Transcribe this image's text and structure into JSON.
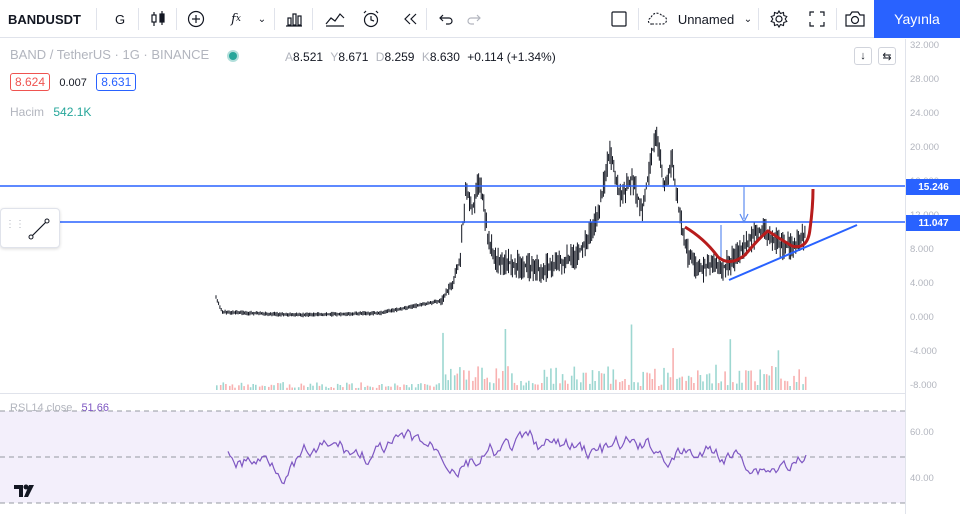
{
  "toolbar": {
    "symbol": "BANDUSDT",
    "interval": "G",
    "layout_name": "Unnamed",
    "publish_label": "Yayınla"
  },
  "legend": {
    "title": "BAND / TetherUS · 1G · BINANCE",
    "ohlc": [
      {
        "key": "A",
        "value": "8.521"
      },
      {
        "key": "Y",
        "value": "8.671"
      },
      {
        "key": "D",
        "value": "8.259"
      },
      {
        "key": "K",
        "value": "8.630"
      },
      {
        "key": "",
        "value": "+0.114 (+1.34%)"
      }
    ],
    "bid": "8.624",
    "spread": "0.007",
    "ask": "8.631",
    "volume_label": "Hacim",
    "volume_value": "542.1K",
    "rsi_label": "RSI 14 close",
    "rsi_value": "51.66"
  },
  "price_axis": {
    "ticks": [
      "32.000",
      "28.000",
      "24.000",
      "20.000",
      "16.000",
      "12.000",
      "8.000",
      "4.000",
      "0.000",
      "-4.000",
      "-8.000"
    ],
    "rsi_ticks": [
      "60.00",
      "40.00"
    ],
    "line_tags": [
      "15.246",
      "11.047"
    ]
  },
  "colors": {
    "horizontal_line": "#2962ff",
    "candles": "#131722",
    "curve": "#b71c1c",
    "trendline": "#2962ff",
    "rsi_line": "#7e57c2",
    "rsi_band": "#f3effb",
    "publish": "#2962ff"
  }
}
